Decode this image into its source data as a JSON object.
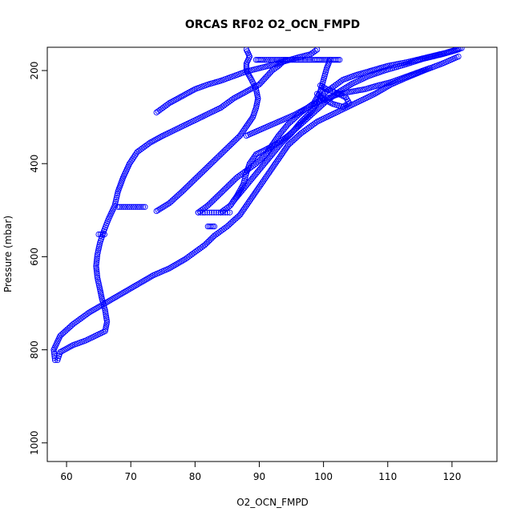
{
  "chart_data": {
    "type": "scatter",
    "title": "ORCAS RF02 O2_OCN_FMPD",
    "xlabel": "O2_OCN_FMPD",
    "ylabel": "Pressure (mbar)",
    "xlim": [
      57,
      127
    ],
    "ylim": [
      1040,
      150
    ],
    "y_axis_inverted": true,
    "x_ticks": [
      60,
      70,
      80,
      90,
      100,
      110,
      120
    ],
    "y_ticks": [
      200,
      400,
      600,
      800,
      1000
    ],
    "marker": "open-circle",
    "color": "#0000ff",
    "grid": false,
    "legend": "none",
    "series": [
      {
        "values": [
          [
            58.2,
            822
          ],
          [
            58.0,
            800
          ],
          [
            59.0,
            770
          ],
          [
            61.0,
            745
          ],
          [
            63.5,
            720
          ],
          [
            66.0,
            700
          ],
          [
            68.5,
            680
          ],
          [
            71.0,
            660
          ],
          [
            73.5,
            640
          ],
          [
            76.0,
            625
          ],
          [
            78.5,
            605
          ],
          [
            80.0,
            590
          ],
          [
            81.5,
            575
          ],
          [
            83.0,
            555
          ],
          [
            85.0,
            535
          ],
          [
            87.0,
            510
          ],
          [
            88.5,
            480
          ],
          [
            90.0,
            450
          ],
          [
            91.5,
            420
          ],
          [
            93.0,
            390
          ],
          [
            94.5,
            360
          ],
          [
            96.5,
            335
          ],
          [
            99.0,
            310
          ],
          [
            102.0,
            290
          ],
          [
            105.0,
            270
          ],
          [
            108.0,
            250
          ],
          [
            110.5,
            230
          ],
          [
            113.0,
            215
          ],
          [
            116.0,
            198
          ],
          [
            118.5,
            185
          ],
          [
            121.0,
            170
          ]
        ]
      },
      {
        "values": [
          [
            58.6,
            822
          ],
          [
            59.0,
            805
          ],
          [
            61.0,
            790
          ],
          [
            63.0,
            780
          ],
          [
            66.0,
            760
          ],
          [
            66.3,
            740
          ],
          [
            66.0,
            715
          ],
          [
            65.5,
            690
          ],
          [
            65.2,
            670
          ],
          [
            64.8,
            645
          ],
          [
            64.6,
            620
          ],
          [
            64.8,
            595
          ],
          [
            65.2,
            570
          ],
          [
            65.8,
            545
          ],
          [
            66.5,
            520
          ],
          [
            67.5,
            490
          ],
          [
            68.0,
            460
          ],
          [
            68.8,
            430
          ],
          [
            69.8,
            400
          ],
          [
            71.0,
            375
          ],
          [
            73.0,
            355
          ],
          [
            75.0,
            340
          ],
          [
            78.0,
            320
          ],
          [
            81.0,
            300
          ],
          [
            84.0,
            280
          ],
          [
            86.0,
            260
          ],
          [
            88.0,
            245
          ],
          [
            90.0,
            230
          ],
          [
            91.0,
            215
          ],
          [
            92.0,
            200
          ],
          [
            93.0,
            190
          ],
          [
            94.0,
            177
          ]
        ]
      },
      {
        "values": [
          [
            74.0,
            502
          ],
          [
            76.0,
            485
          ],
          [
            78.0,
            460
          ],
          [
            79.5,
            440
          ],
          [
            81.0,
            420
          ],
          [
            82.5,
            400
          ],
          [
            84.0,
            380
          ],
          [
            85.5,
            360
          ],
          [
            87.0,
            340
          ],
          [
            88.0,
            320
          ],
          [
            89.0,
            300
          ],
          [
            89.5,
            280
          ],
          [
            89.8,
            260
          ],
          [
            89.5,
            240
          ],
          [
            88.8,
            220
          ],
          [
            88.0,
            200
          ],
          [
            88.0,
            185
          ],
          [
            88.5,
            170
          ],
          [
            88.0,
            155
          ]
        ]
      },
      {
        "values": [
          [
            80.5,
            505
          ],
          [
            82.0,
            490
          ],
          [
            83.5,
            470
          ],
          [
            85.0,
            450
          ],
          [
            86.5,
            430
          ],
          [
            88.0,
            415
          ],
          [
            89.5,
            400
          ],
          [
            91.0,
            380
          ],
          [
            92.0,
            360
          ],
          [
            93.0,
            340
          ],
          [
            94.5,
            315
          ],
          [
            96.5,
            290
          ],
          [
            98.5,
            270
          ],
          [
            99.5,
            245
          ],
          [
            100.0,
            220
          ],
          [
            100.5,
            195
          ],
          [
            101.0,
            177
          ]
        ]
      },
      {
        "values": [
          [
            84.0,
            505
          ],
          [
            85.5,
            490
          ],
          [
            86.5,
            470
          ],
          [
            87.5,
            445
          ],
          [
            88.0,
            420
          ],
          [
            88.5,
            400
          ],
          [
            89.5,
            380
          ],
          [
            91.0,
            370
          ],
          [
            93.0,
            355
          ],
          [
            94.5,
            340
          ],
          [
            96.5,
            315
          ],
          [
            98.5,
            290
          ],
          [
            100.5,
            265
          ],
          [
            102.5,
            245
          ],
          [
            104.5,
            228
          ],
          [
            107.0,
            212
          ],
          [
            109.5,
            200
          ],
          [
            112.5,
            188
          ],
          [
            115.5,
            175
          ],
          [
            118.5,
            165
          ],
          [
            121.0,
            155
          ]
        ]
      },
      {
        "values": [
          [
            86.0,
            480
          ],
          [
            87.5,
            455
          ],
          [
            89.0,
            430
          ],
          [
            90.5,
            405
          ],
          [
            92.0,
            380
          ],
          [
            93.5,
            355
          ],
          [
            95.0,
            335
          ],
          [
            96.5,
            310
          ],
          [
            98.0,
            290
          ],
          [
            99.0,
            270
          ],
          [
            100.0,
            250
          ],
          [
            101.5,
            235
          ],
          [
            103.0,
            220
          ],
          [
            105.0,
            210
          ],
          [
            107.5,
            200
          ],
          [
            110.0,
            190
          ],
          [
            113.0,
            182
          ],
          [
            116.0,
            172
          ],
          [
            119.0,
            162
          ],
          [
            121.5,
            152
          ]
        ]
      },
      {
        "values": [
          [
            74.0,
            290
          ],
          [
            76.0,
            270
          ],
          [
            78.0,
            255
          ],
          [
            80.0,
            240
          ],
          [
            82.0,
            230
          ],
          [
            84.0,
            222
          ],
          [
            86.0,
            212
          ],
          [
            88.0,
            202
          ],
          [
            90.0,
            195
          ],
          [
            92.0,
            188
          ],
          [
            94.0,
            180
          ],
          [
            96.0,
            172
          ],
          [
            98.0,
            165
          ],
          [
            99.0,
            155
          ]
        ]
      },
      {
        "values": [
          [
            88.0,
            340
          ],
          [
            90.5,
            325
          ],
          [
            93.0,
            310
          ],
          [
            95.5,
            295
          ],
          [
            97.5,
            280
          ],
          [
            99.0,
            268
          ],
          [
            100.5,
            260
          ],
          [
            102.5,
            250
          ],
          [
            104.5,
            245
          ],
          [
            106.5,
            240
          ],
          [
            108.5,
            232
          ],
          [
            110.5,
            225
          ],
          [
            112.5,
            215
          ],
          [
            114.5,
            205
          ],
          [
            116.5,
            195
          ]
        ]
      },
      {
        "values": [
          [
            99.0,
            250
          ],
          [
            100.0,
            262
          ],
          [
            101.5,
            272
          ],
          [
            103.0,
            278
          ],
          [
            104.0,
            270
          ],
          [
            103.5,
            258
          ],
          [
            102.0,
            248
          ],
          [
            100.5,
            240
          ],
          [
            99.5,
            232
          ]
        ]
      },
      {
        "values": [
          [
            65.0,
            552
          ],
          [
            65.3,
            552
          ],
          [
            65.6,
            552
          ],
          [
            65.9,
            552
          ]
        ]
      },
      {
        "values": [
          [
            68.0,
            493
          ],
          [
            68.6,
            493
          ],
          [
            69.2,
            493
          ],
          [
            69.8,
            493
          ],
          [
            70.4,
            493
          ],
          [
            71.0,
            493
          ],
          [
            71.6,
            493
          ],
          [
            72.2,
            493
          ]
        ]
      },
      {
        "values": [
          [
            80.5,
            505
          ],
          [
            81.2,
            505
          ],
          [
            81.9,
            505
          ],
          [
            82.6,
            505
          ],
          [
            83.3,
            505
          ],
          [
            84.0,
            505
          ],
          [
            84.7,
            505
          ],
          [
            85.4,
            505
          ]
        ]
      },
      {
        "values": [
          [
            82.0,
            535
          ],
          [
            82.5,
            535
          ],
          [
            83.0,
            535
          ]
        ]
      },
      {
        "values": [
          [
            89.5,
            177
          ],
          [
            90.0,
            177
          ],
          [
            90.5,
            177
          ],
          [
            93.5,
            177
          ],
          [
            94.0,
            177
          ],
          [
            94.5,
            177
          ],
          [
            98.5,
            177
          ],
          [
            99.0,
            177
          ],
          [
            99.5,
            177
          ],
          [
            101.5,
            177
          ],
          [
            102.0,
            177
          ],
          [
            102.5,
            177
          ]
        ]
      }
    ]
  }
}
